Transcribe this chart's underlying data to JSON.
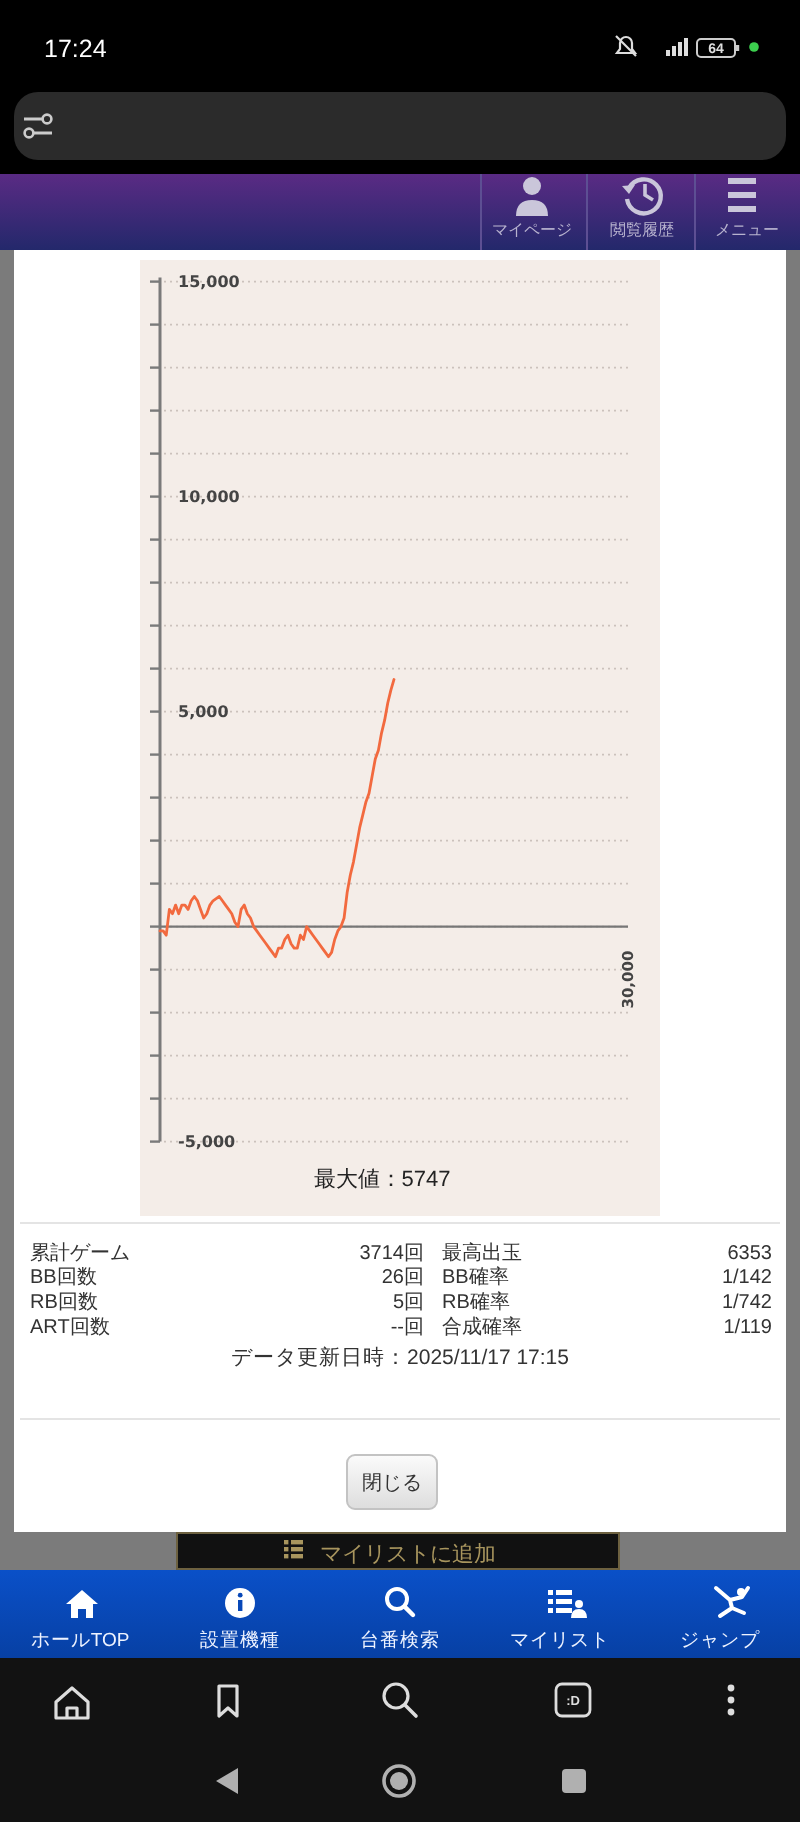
{
  "chart_data": {
    "type": "line",
    "categories": [
      null,
      null,
      null,
      null,
      null,
      null,
      null,
      null,
      null,
      null,
      null,
      null,
      null,
      null,
      null,
      null,
      null,
      null,
      null,
      null,
      null,
      null,
      null,
      null,
      null,
      null,
      null,
      null,
      null,
      null,
      null,
      null,
      null,
      null,
      null,
      null,
      null,
      null,
      null,
      null,
      null,
      null,
      null,
      null,
      null,
      null,
      null,
      null,
      null,
      null,
      null,
      null,
      null,
      null,
      null,
      null,
      null,
      null,
      null,
      null,
      null,
      null,
      null,
      null,
      null,
      null,
      null,
      null,
      null,
      null,
      null,
      null,
      null,
      null,
      null,
      null,
      null,
      null,
      null,
      null,
      null,
      null,
      null,
      null,
      null,
      null,
      null,
      null,
      null,
      null,
      null,
      null,
      null,
      null,
      null,
      null,
      null,
      null,
      null,
      null,
      null,
      null,
      null,
      null,
      null,
      null,
      null,
      null,
      null,
      null,
      null,
      null,
      null,
      null,
      null,
      null,
      null,
      null,
      null,
      null,
      null,
      null,
      null,
      null,
      null,
      null,
      null,
      null,
      null,
      null,
      null,
      null,
      null,
      null,
      null,
      null,
      null,
      null,
      null,
      null,
      null,
      null,
      null,
      null,
      null,
      null,
      null,
      null,
      null,
      null,
      null
    ],
    "series": [
      {
        "color": "#f26a3f",
        "values": [
          -100,
          -100,
          -200,
          400,
          300,
          500,
          300,
          500,
          500,
          400,
          600,
          700,
          600,
          400,
          200,
          300,
          500,
          600,
          650,
          700,
          600,
          500,
          400,
          300,
          100,
          0,
          400,
          500,
          300,
          200,
          0,
          -100,
          -200,
          -300,
          -400,
          -500,
          -600,
          -700,
          -500,
          -500,
          -300,
          -200,
          -400,
          -500,
          -500,
          -200,
          -300,
          0,
          -100,
          -200,
          -300,
          -400,
          -500,
          -600,
          -700,
          -600,
          -300,
          -100,
          0,
          200,
          800,
          1200,
          1500,
          1900,
          2300,
          2600,
          2900,
          3100,
          3500,
          3900,
          4100,
          4500,
          4800,
          5200,
          5500,
          5747,
          null,
          null,
          null,
          null,
          null,
          null,
          null,
          null,
          null,
          null,
          null,
          null,
          null,
          null,
          null,
          null,
          null,
          null,
          null,
          null,
          null,
          null,
          null,
          null,
          null,
          null,
          null,
          null,
          null,
          null,
          null,
          null,
          null,
          null,
          null,
          null,
          null,
          null,
          null,
          null,
          null,
          null,
          null,
          null,
          null,
          null,
          null,
          null,
          null,
          null,
          null,
          null,
          null,
          null,
          null,
          null,
          null,
          null,
          null,
          null,
          null,
          null,
          null,
          null,
          null,
          null,
          null,
          null,
          null,
          null,
          null,
          null,
          null,
          null,
          null
        ]
      }
    ],
    "ylim": [
      -5000,
      15000
    ],
    "yticks": [
      {
        "value": -5000,
        "label": "-5,000"
      },
      {
        "value": -4000,
        "label": null
      },
      {
        "value": -3000,
        "label": null
      },
      {
        "value": -2000,
        "label": null
      },
      {
        "value": -1000,
        "label": null
      },
      {
        "value": 0,
        "label": null
      },
      {
        "value": 1000,
        "label": null
      },
      {
        "value": 2000,
        "label": null
      },
      {
        "value": 3000,
        "label": null
      },
      {
        "value": 4000,
        "label": null
      },
      {
        "value": 5000,
        "label": "5,000"
      },
      {
        "value": 6000,
        "label": null
      },
      {
        "value": 7000,
        "label": null
      },
      {
        "value": 8000,
        "label": null
      },
      {
        "value": 9000,
        "label": null
      },
      {
        "value": 10000,
        "label": "10,000"
      },
      {
        "value": 11000,
        "label": null
      },
      {
        "value": 12000,
        "label": null
      },
      {
        "value": 13000,
        "label": null
      },
      {
        "value": 14000,
        "label": null
      },
      {
        "value": 15000,
        "label": "15,000"
      }
    ],
    "grid": "y",
    "annotations": [
      "17:24",
      "64",
      "マイページ",
      "閲覧履歴",
      "メニュー",
      "30,000",
      "最大値：5747",
      "累計ゲーム",
      "3714回",
      "最高出玉",
      "6353",
      "BB回数",
      "26回",
      "BB確率",
      "1/142",
      "RB回数",
      "5回",
      "RB確率",
      "1/742",
      "ART回数",
      "--回",
      "合成確率",
      "1/119",
      "データ更新日時：2025/11/17 17:15",
      "閉じる",
      "マイリストに追加",
      "ホールTOP",
      "設置機種",
      "台番検索",
      "マイリスト",
      "ジャンプ",
      ":D"
    ]
  }
}
